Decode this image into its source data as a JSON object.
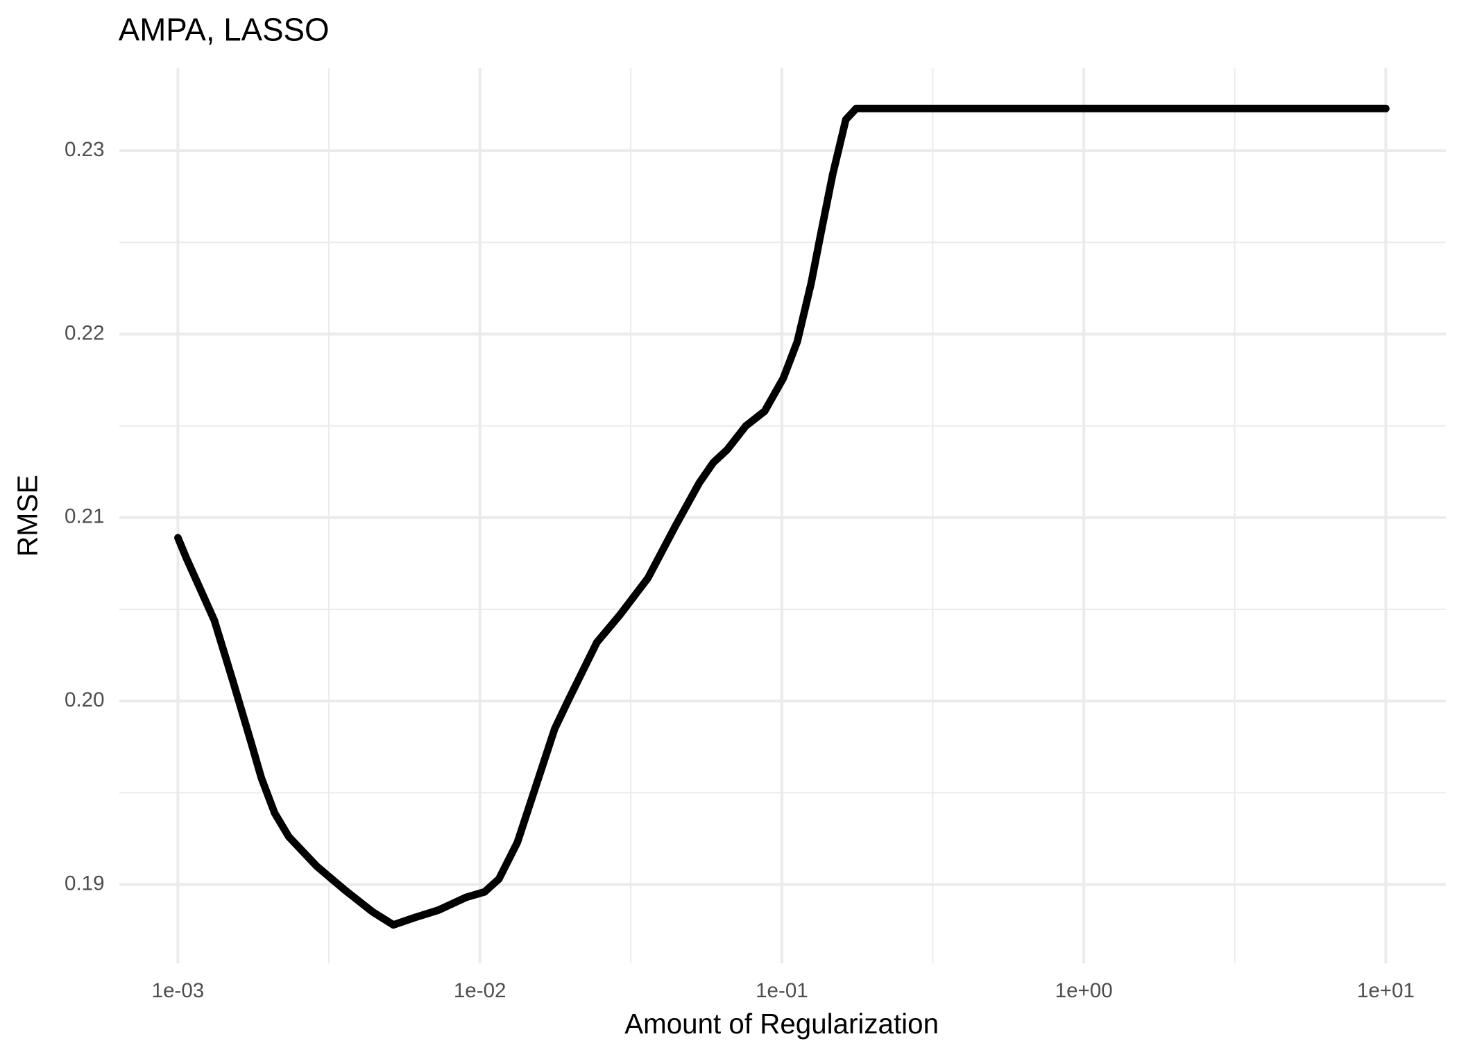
{
  "chart_data": {
    "type": "line",
    "title": "AMPA, LASSO",
    "x_label": "Amount of Regularization",
    "y_label": "RMSE",
    "x_log": true,
    "grid": true,
    "xlim": [
      0.00064,
      15.8
    ],
    "ylim": [
      0.1857,
      0.2345
    ],
    "xticks": [
      {
        "value": 0.001,
        "label": "1e-03"
      },
      {
        "value": 0.01,
        "label": "1e-02"
      },
      {
        "value": 0.1,
        "label": "1e-01"
      },
      {
        "value": 1,
        "label": "1e+00"
      },
      {
        "value": 10,
        "label": "1e+01"
      }
    ],
    "yticks": [
      0.19,
      {
        "value": 0.2,
        "label": "0.20"
      },
      0.21,
      0.22,
      0.23
    ],
    "x_minor_grid": [
      0.00316,
      0.0316,
      0.316,
      3.16
    ],
    "y_minor_grid": [
      0.195,
      0.205,
      0.215,
      0.225
    ],
    "series": [
      {
        "color": "#000000",
        "x": [
          0.001,
          0.001066,
          0.00132,
          0.00152,
          0.00175,
          0.00189,
          0.00209,
          0.00233,
          0.00288,
          0.00357,
          0.00442,
          0.00517,
          0.00609,
          0.00728,
          0.009,
          0.01037,
          0.01156,
          0.01331,
          0.01535,
          0.0177,
          0.0197,
          0.0244,
          0.0291,
          0.036,
          0.0446,
          0.0533,
          0.0593,
          0.0659,
          0.076,
          0.0877,
          0.1011,
          0.1125,
          0.1251,
          0.1343,
          0.1473,
          0.1629,
          0.1762,
          10
        ],
        "values": [
          0.2089,
          0.2078,
          0.2044,
          0.2011,
          0.1977,
          0.1958,
          0.1939,
          0.1926,
          0.191,
          0.1897,
          0.1885,
          0.1878,
          0.1882,
          0.1886,
          0.1893,
          0.1896,
          0.1903,
          0.1923,
          0.1954,
          0.1985,
          0.2001,
          0.2032,
          0.2047,
          0.2067,
          0.2096,
          0.2119,
          0.213,
          0.2137,
          0.215,
          0.2158,
          0.2176,
          0.2196,
          0.2228,
          0.2254,
          0.2287,
          0.2317,
          0.2323,
          0.2323
        ]
      }
    ]
  }
}
